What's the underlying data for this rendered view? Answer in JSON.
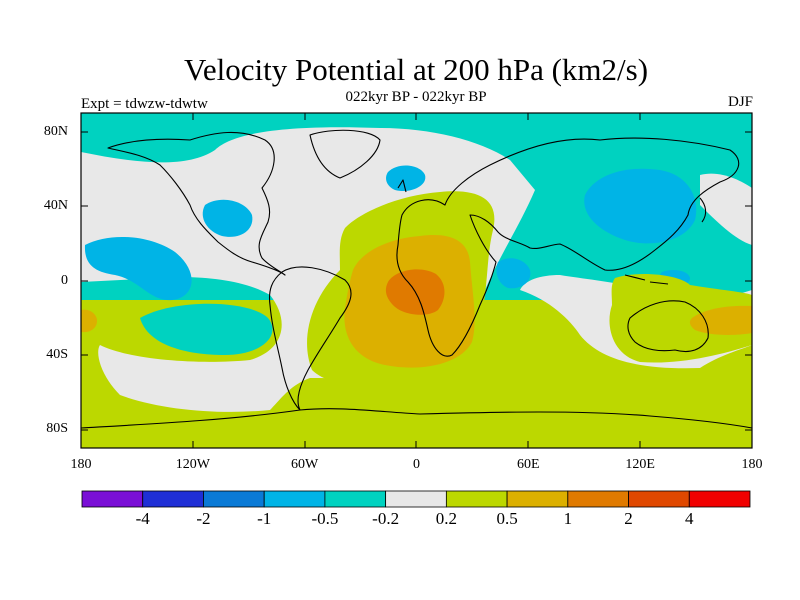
{
  "title": "Velocity Potential at 200 hPa (km2/s)",
  "subtitle": "022kyr BP - 022kyr BP",
  "left_label": "Expt = tdwzw-tdwtw",
  "right_label": "DJF",
  "map": {
    "projection": "cylindrical-equidistant",
    "lon_range": [
      -180,
      180
    ],
    "lat_range": [
      -90,
      90
    ],
    "lat_ticks": [
      {
        "value": 80,
        "label": "80N"
      },
      {
        "value": 40,
        "label": "40N"
      },
      {
        "value": 0,
        "label": "0"
      },
      {
        "value": -40,
        "label": "40S"
      },
      {
        "value": -80,
        "label": "80S"
      }
    ],
    "lon_ticks": [
      {
        "value": -180,
        "label": "180"
      },
      {
        "value": -120,
        "label": "120W"
      },
      {
        "value": -60,
        "label": "60W"
      },
      {
        "value": 0,
        "label": "0"
      },
      {
        "value": 60,
        "label": "60E"
      },
      {
        "value": 120,
        "label": "120E"
      },
      {
        "value": 180,
        "label": "180"
      }
    ]
  },
  "colorbar": {
    "colors": [
      "#7a0fd6",
      "#1f2fd6",
      "#0a7ad6",
      "#00b4e6",
      "#00d2c0",
      "#e8e8e8",
      "#bcd800",
      "#dcb000",
      "#e07a00",
      "#e04800",
      "#f00000"
    ],
    "labels": [
      "-4",
      "-2",
      "-1",
      "-0.5",
      "-0.2",
      "0.2",
      "0.5",
      "1",
      "2",
      "4"
    ]
  }
}
